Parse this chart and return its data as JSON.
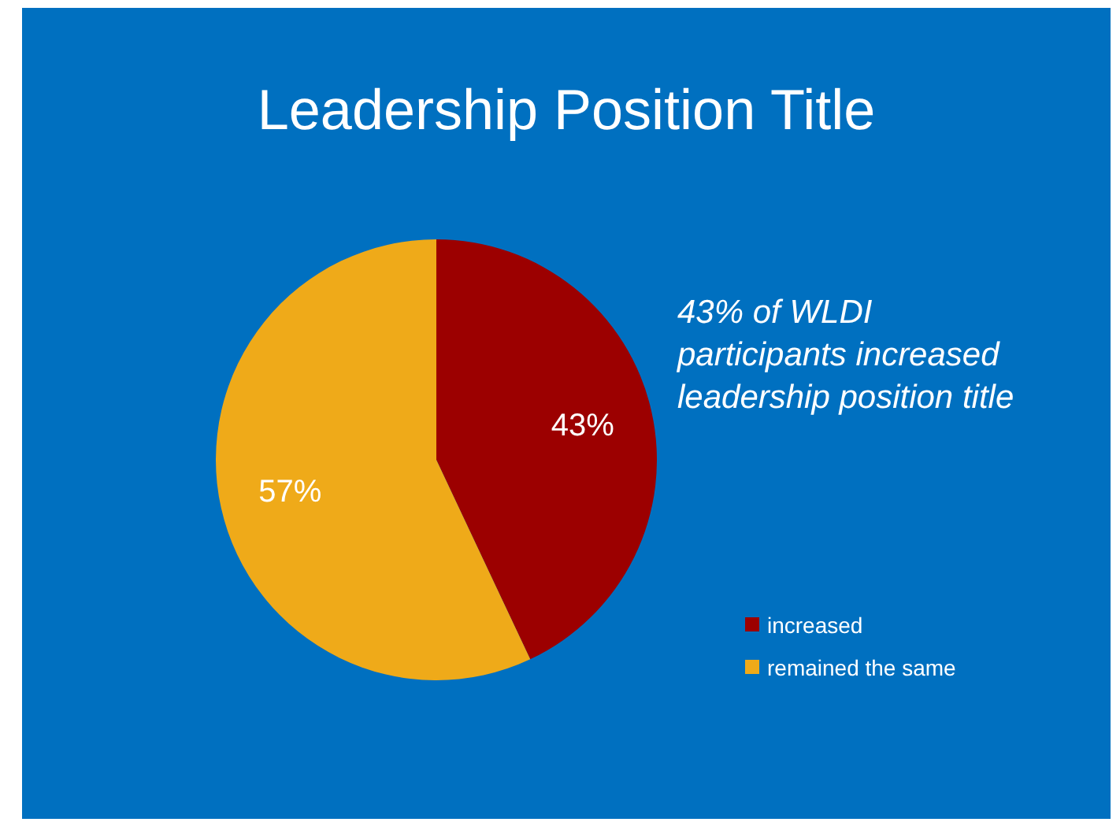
{
  "chart_data": {
    "type": "pie",
    "title": "Leadership Position Title",
    "categories": [
      "increased",
      "remained the same"
    ],
    "values": [
      43,
      57
    ],
    "colors": [
      "#9c0000",
      "#efaa19"
    ],
    "value_labels": [
      "43%",
      "57%"
    ],
    "legend": "bottom right",
    "annotations": [
      "43% of WLDI participants increased leadership position title"
    ]
  }
}
